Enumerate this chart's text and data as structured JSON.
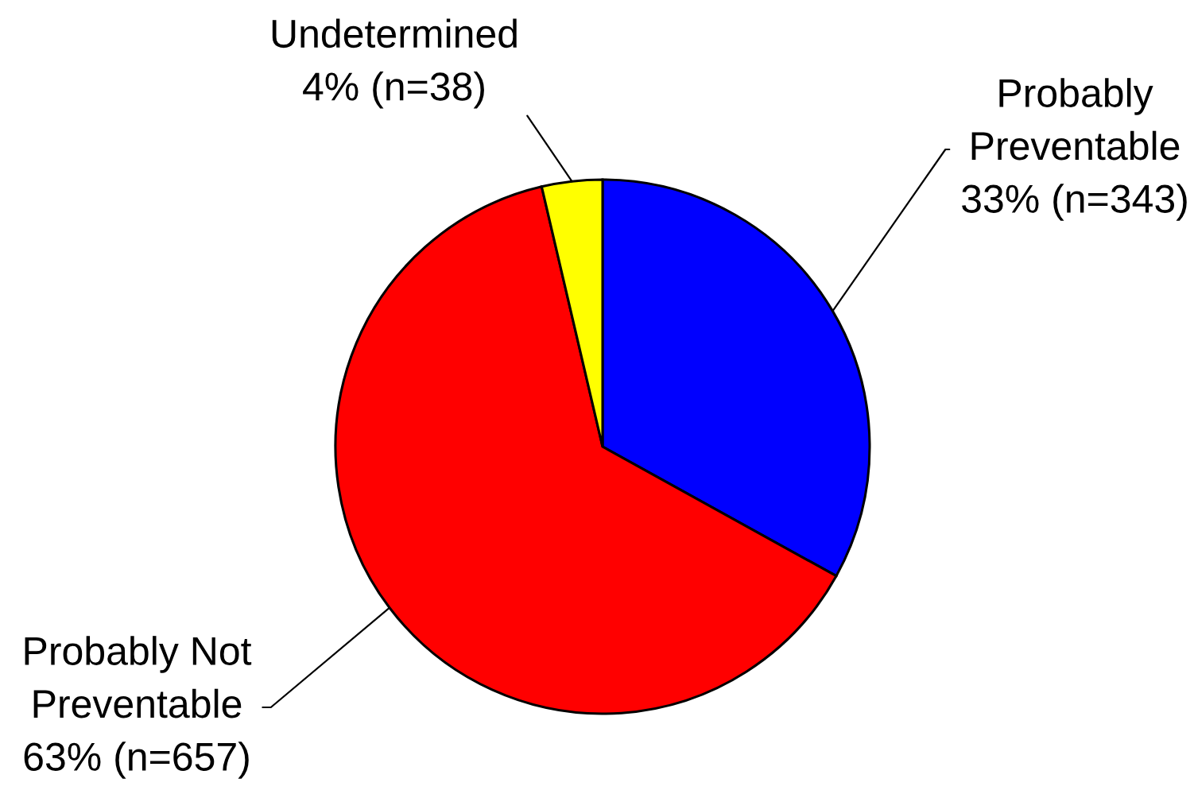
{
  "chart_data": {
    "type": "pie",
    "categories": [
      "Probably Preventable",
      "Probably Not Preventable",
      "Undetermined"
    ],
    "values": [
      343,
      657,
      38
    ],
    "colors": [
      "#0000ff",
      "#ff0000",
      "#ffff00"
    ],
    "value_labels": [
      "33% (n=343)",
      "63% (n=657)",
      "4% (n=38)"
    ]
  }
}
